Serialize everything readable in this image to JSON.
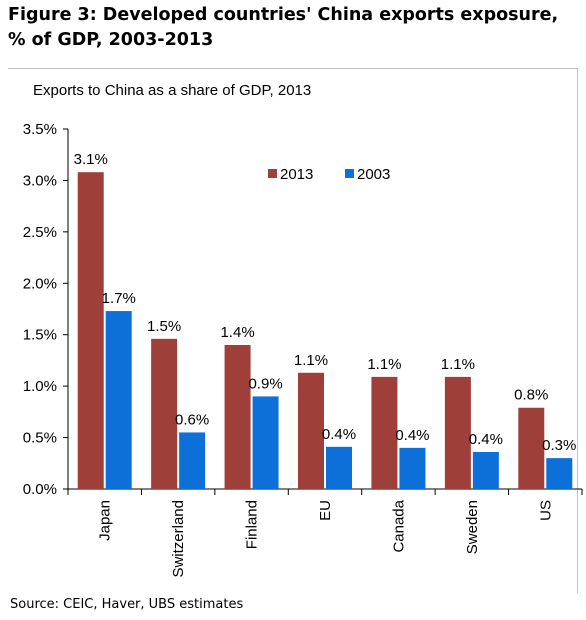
{
  "figure_title": "Figure 3: Developed countries' China exports exposure, % of GDP, 2003-2013",
  "source": "Source:  CEIC, Haver, UBS estimates",
  "colors": {
    "series_2013": "#9e3f3a",
    "series_2003": "#0c70d8",
    "axis": "#000000"
  },
  "chart_data": {
    "type": "bar",
    "title": "Exports to China as a share of GDP, 2013",
    "xlabel": "",
    "ylabel": "",
    "categories": [
      "Japan",
      "Switzerland",
      "Finland",
      "EU",
      "Canada",
      "Sweden",
      "US"
    ],
    "series": [
      {
        "name": "2013",
        "values": [
          3.08,
          1.46,
          1.4,
          1.13,
          1.09,
          1.09,
          0.79
        ],
        "labels": [
          "3.1%",
          "1.5%",
          "1.4%",
          "1.1%",
          "1.1%",
          "1.1%",
          "0.8%"
        ]
      },
      {
        "name": "2003",
        "values": [
          1.73,
          0.55,
          0.9,
          0.41,
          0.4,
          0.36,
          0.3
        ],
        "labels": [
          "1.7%",
          "0.6%",
          "0.9%",
          "0.4%",
          "0.4%",
          "0.4%",
          "0.3%"
        ]
      }
    ],
    "ylim": [
      0,
      3.5
    ],
    "yticks": [
      0,
      0.5,
      1.0,
      1.5,
      2.0,
      2.5,
      3.0,
      3.5
    ],
    "ytick_labels": [
      "0.0%",
      "0.5%",
      "1.0%",
      "1.5%",
      "2.0%",
      "2.5%",
      "3.0%",
      "3.5%"
    ],
    "grid": false,
    "legend_position": "top-right"
  }
}
